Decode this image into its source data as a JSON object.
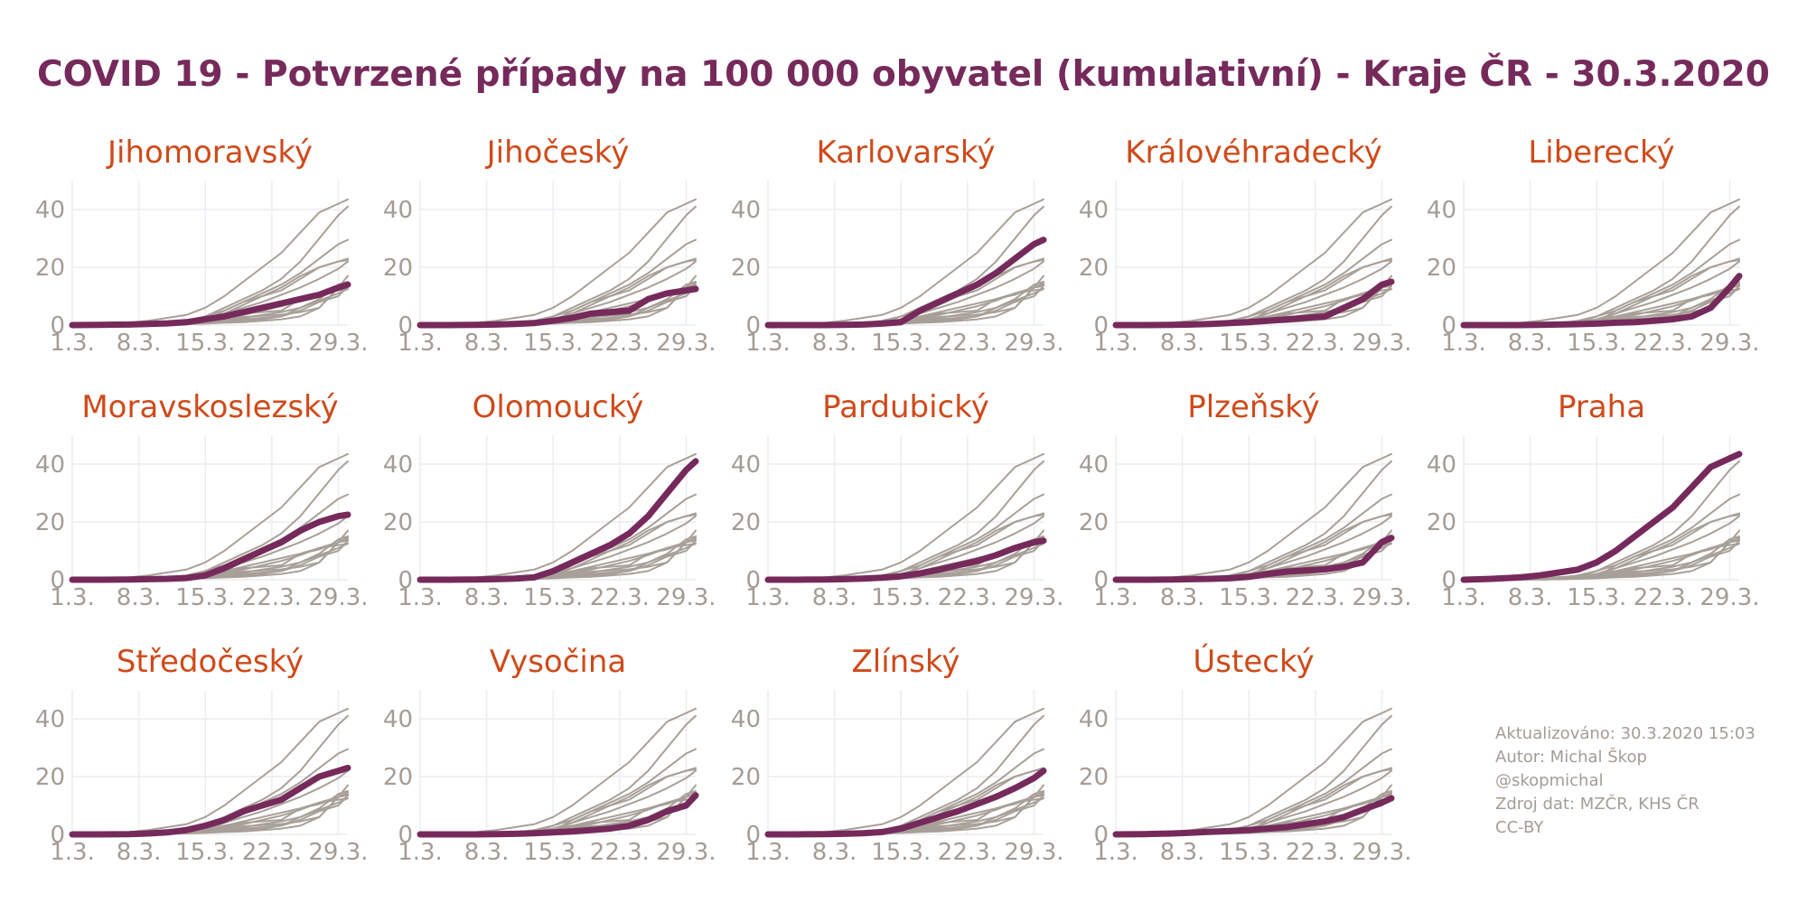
{
  "title": "COVID 19 - Potvrzené případy na 100 000 obyvatel (kumulativní) - Kraje ČR - 30.3.2020",
  "notes": {
    "updated": "Aktualizováno: 30.3.2020 15:03",
    "author": "Autor: Michal Škop",
    "handle": "@skopmichal",
    "source": "Zdroj dat: MZČR, KHS ČR",
    "license": "CC-BY"
  },
  "colors": {
    "highlight": "#762a5b",
    "background_lines": "#a8a098",
    "panel_title": "#cf4a1a",
    "ticks": "#a49c95",
    "grid": "#ececf2"
  },
  "chart_data": {
    "type": "line",
    "layout": "small-multiples",
    "x_tick_labels": [
      "1.3.",
      "8.3.",
      "15.3.",
      "22.3.",
      "29.3."
    ],
    "x_tick_days": [
      1,
      8,
      15,
      22,
      29
    ],
    "xlim": [
      1,
      30
    ],
    "ylim": [
      0,
      50
    ],
    "y_ticks": [
      0,
      20,
      40
    ],
    "x_days": [
      1,
      4,
      7,
      9,
      11,
      13,
      15,
      17,
      19,
      21,
      23,
      25,
      27,
      29,
      30
    ],
    "series": [
      {
        "name": "Jihomoravský",
        "values": [
          0,
          0.1,
          0.2,
          0.4,
          0.6,
          1,
          2,
          3,
          4.5,
          6,
          7.5,
          9,
          10.5,
          13,
          14
        ]
      },
      {
        "name": "Jihočeský",
        "values": [
          0,
          0,
          0.1,
          0.2,
          0.4,
          0.7,
          1.5,
          2.5,
          4,
          4.5,
          5,
          9,
          11,
          12,
          12.5
        ]
      },
      {
        "name": "Karlovarský",
        "values": [
          0,
          0,
          0,
          0.1,
          0.2,
          0.5,
          1,
          5,
          8,
          11,
          14,
          18,
          23,
          28,
          29.5
        ]
      },
      {
        "name": "Královéhradecký",
        "values": [
          0,
          0,
          0.1,
          0.2,
          0.4,
          0.7,
          1,
          1.5,
          2,
          2.5,
          3,
          6,
          9,
          14,
          15
        ]
      },
      {
        "name": "Liberecký",
        "values": [
          0,
          0,
          0,
          0.1,
          0.2,
          0.3,
          0.5,
          0.8,
          1,
          1.5,
          2,
          3,
          6,
          13,
          17
        ]
      },
      {
        "name": "Moravskoslezský",
        "values": [
          0,
          0,
          0.1,
          0.2,
          0.3,
          0.6,
          1.5,
          4,
          7,
          10,
          13,
          17,
          20,
          22,
          22.5
        ]
      },
      {
        "name": "Olomoucký",
        "values": [
          0,
          0,
          0.1,
          0.2,
          0.4,
          0.8,
          3,
          6,
          9,
          12,
          16,
          22,
          30,
          38,
          41
        ]
      },
      {
        "name": "Pardubický",
        "values": [
          0,
          0,
          0.1,
          0.2,
          0.4,
          0.7,
          1.2,
          2.2,
          3.5,
          5,
          6.5,
          8.5,
          11,
          13,
          13.5
        ]
      },
      {
        "name": "Plzeňský",
        "values": [
          0,
          0,
          0.1,
          0.2,
          0.3,
          0.5,
          1,
          2,
          2.8,
          3.2,
          3.6,
          4.5,
          6,
          13,
          14.5
        ]
      },
      {
        "name": "Praha",
        "values": [
          0,
          0.3,
          0.8,
          1.5,
          2.5,
          3.5,
          6,
          10,
          15,
          20,
          25,
          32,
          39,
          42,
          43.5
        ]
      },
      {
        "name": "Středočeský",
        "values": [
          0,
          0,
          0.1,
          0.3,
          0.7,
          1.5,
          3,
          5,
          8,
          10,
          12,
          16,
          20,
          22,
          23
        ]
      },
      {
        "name": "Vysočina",
        "values": [
          0,
          0,
          0,
          0.1,
          0.2,
          0.4,
          0.7,
          1,
          1.5,
          2,
          3,
          5,
          8,
          10,
          13.5
        ]
      },
      {
        "name": "Zlínský",
        "values": [
          0,
          0,
          0.1,
          0.2,
          0.4,
          0.8,
          2,
          4,
          6,
          8,
          10.5,
          13,
          16,
          19.5,
          22
        ]
      },
      {
        "name": "Ústecký",
        "values": [
          0,
          0.1,
          0.3,
          0.6,
          0.9,
          1.2,
          1.5,
          2,
          2.5,
          3.5,
          4.5,
          6,
          8.5,
          11,
          12.5
        ]
      }
    ]
  }
}
